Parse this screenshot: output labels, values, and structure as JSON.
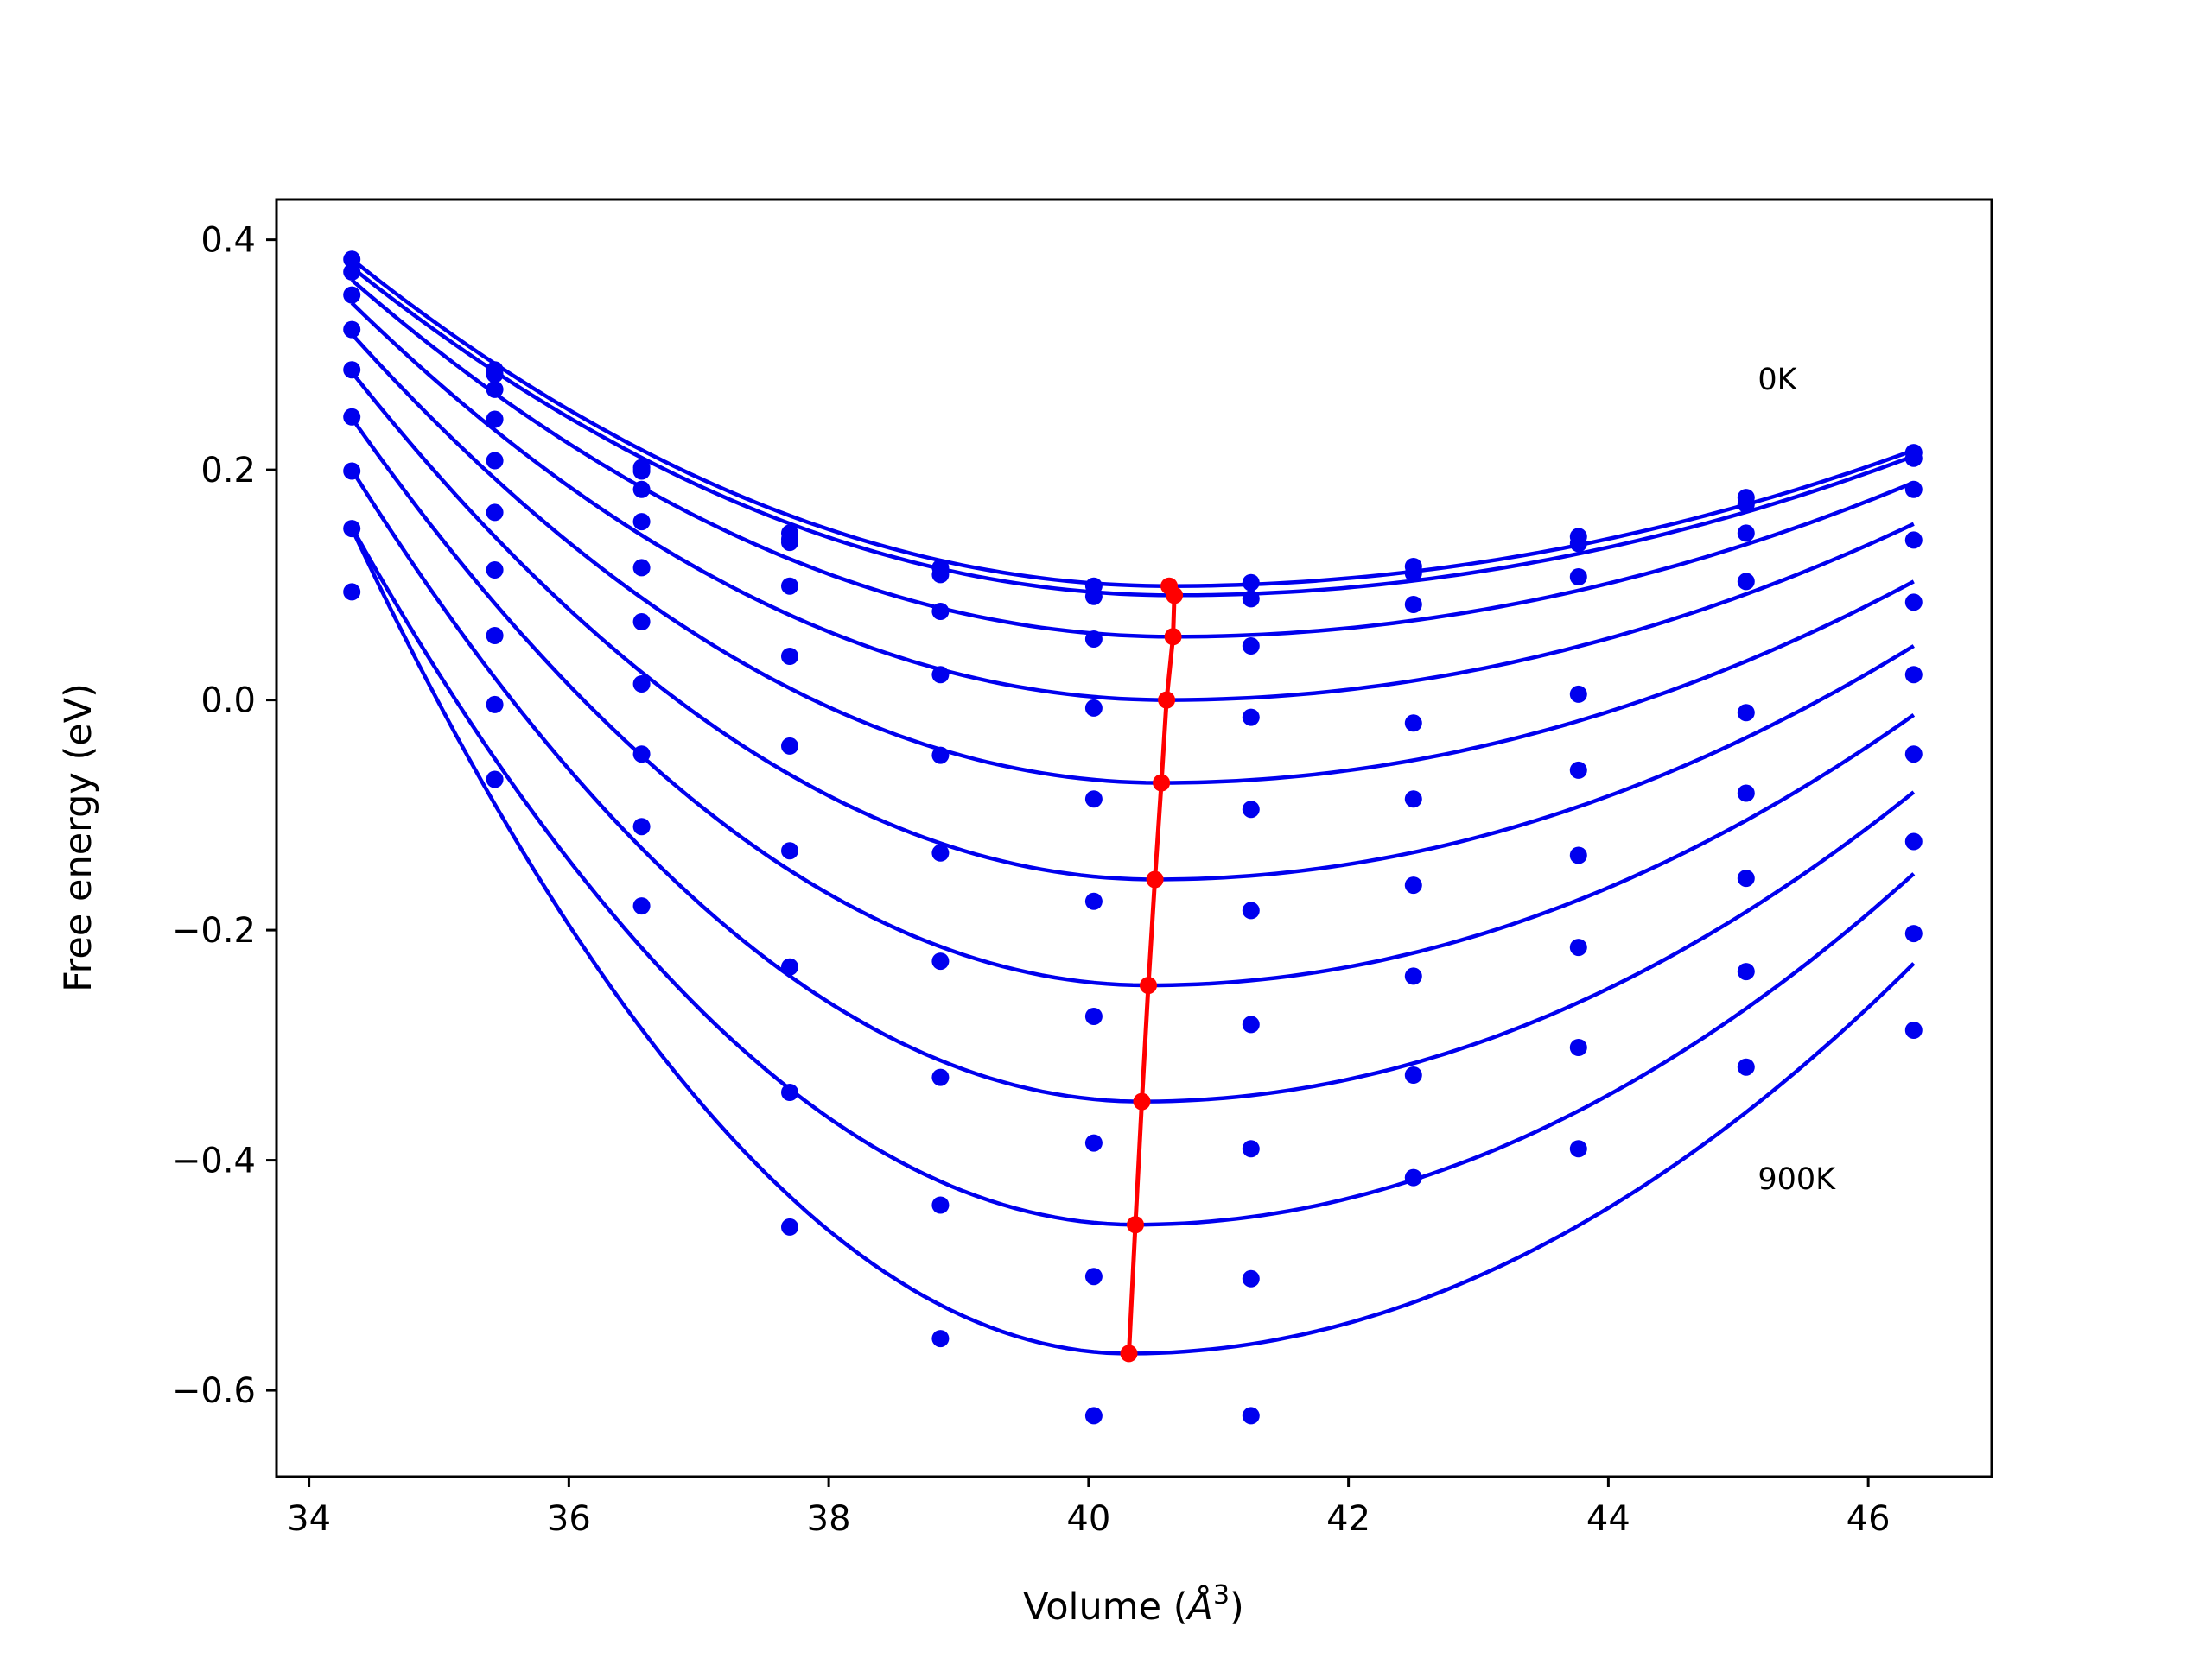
{
  "chart_data": {
    "type": "scatter",
    "xlabel": "Volume (",
    "xlabel_symbol": "Å",
    "xlabel_sup": "3",
    "xlabel_close": ")",
    "ylabel": "Free energy (eV)",
    "xlim": [
      33.75,
      46.95
    ],
    "ylim": [
      -0.675,
      0.435
    ],
    "xticks": [
      34,
      36,
      38,
      40,
      42,
      44,
      46
    ],
    "xtick_labels": [
      "34",
      "36",
      "38",
      "40",
      "42",
      "44",
      "46"
    ],
    "yticks": [
      0.4,
      0.2,
      0.0,
      -0.2,
      -0.4,
      -0.6
    ],
    "ytick_labels": [
      "0.4",
      "0.2",
      "0.0",
      "−0.2",
      "−0.4",
      "−0.6"
    ],
    "grid": false,
    "colors": {
      "points": "#0000ee",
      "curves": "#0000ee",
      "minimum": "#ff0000"
    },
    "annotations": [
      {
        "text": "0K",
        "x": 45.15,
        "y": 0.27
      },
      {
        "text": "900K",
        "x": 45.15,
        "y": -0.425
      }
    ],
    "volumes": [
      34.33,
      35.43,
      36.56,
      37.7,
      38.86,
      40.04,
      41.25,
      42.5,
      43.77,
      45.06,
      46.35
    ],
    "series": [
      {
        "points": [
          0.383,
          0.287,
          0.202,
          0.145,
          0.115,
          0.099,
          0.102,
          0.116,
          0.142,
          0.176,
          0.215
        ],
        "fit_min": [
          40.62,
          0.099
        ],
        "fit_ends": [
          0.383,
          0.217
        ]
      },
      {
        "points": [
          0.372,
          0.283,
          0.199,
          0.14,
          0.109,
          0.09,
          0.088,
          0.11,
          0.136,
          0.17,
          0.21
        ],
        "fit_min": [
          40.66,
          0.091
        ],
        "fit_ends": [
          0.376,
          0.212
        ]
      },
      {
        "points": [
          0.352,
          0.27,
          0.183,
          0.137,
          0.077,
          0.053,
          0.047,
          0.083,
          0.107,
          0.145,
          0.183
        ],
        "fit_min": [
          40.65,
          0.055
        ],
        "fit_ends": [
          0.365,
          0.189
        ]
      },
      {
        "points": [
          0.322,
          0.244,
          0.155,
          0.099,
          0.022,
          -0.007,
          -0.015,
          -0.02,
          0.005,
          0.103,
          0.139
        ],
        "fit_min": [
          40.6,
          0.0
        ],
        "fit_ends": [
          0.345,
          0.153
        ]
      },
      {
        "points": [
          0.287,
          0.208,
          0.115,
          0.038,
          -0.048,
          -0.086,
          -0.095,
          -0.086,
          -0.061,
          -0.011,
          0.085
        ],
        "fit_min": [
          40.56,
          -0.072
        ],
        "fit_ends": [
          0.318,
          0.103
        ]
      },
      {
        "points": [
          0.246,
          0.163,
          0.068,
          -0.04,
          -0.133,
          -0.175,
          -0.183,
          -0.161,
          -0.135,
          -0.081,
          0.022
        ],
        "fit_min": [
          40.51,
          -0.156
        ],
        "fit_ends": [
          0.285,
          0.047
        ]
      },
      {
        "points": [
          0.199,
          0.113,
          0.014,
          -0.131,
          -0.227,
          -0.275,
          -0.282,
          -0.24,
          -0.215,
          -0.155,
          -0.047
        ],
        "fit_min": [
          40.46,
          -0.248
        ],
        "fit_ends": [
          0.245,
          -0.013
        ]
      },
      {
        "points": [
          0.149,
          0.056,
          -0.047,
          -0.232,
          -0.328,
          -0.385,
          -0.39,
          -0.326,
          -0.302,
          -0.236,
          -0.123
        ],
        "fit_min": [
          40.41,
          -0.349
        ],
        "fit_ends": [
          0.2,
          -0.08
        ]
      },
      {
        "points": [
          0.094,
          -0.004,
          -0.11,
          -0.341,
          -0.439,
          -0.501,
          -0.503,
          -0.415,
          -0.39,
          -0.319,
          -0.203
        ],
        "fit_min": [
          40.36,
          -0.456
        ],
        "fit_ends": [
          0.15,
          -0.151
        ]
      },
      {
        "points": [
          null,
          -0.069,
          -0.179,
          -0.458,
          -0.555,
          -0.622,
          -0.622,
          null,
          null,
          null,
          -0.287
        ],
        "fit_min": [
          40.31,
          -0.568
        ],
        "fit_ends": [
          0.149,
          -0.229
        ]
      }
    ],
    "minimum_line": {
      "x": [
        40.62,
        40.66,
        40.65,
        40.6,
        40.56,
        40.51,
        40.46,
        40.41,
        40.36,
        40.31
      ],
      "y": [
        0.099,
        0.091,
        0.055,
        0.0,
        -0.072,
        -0.156,
        -0.248,
        -0.349,
        -0.456,
        -0.568
      ]
    }
  }
}
